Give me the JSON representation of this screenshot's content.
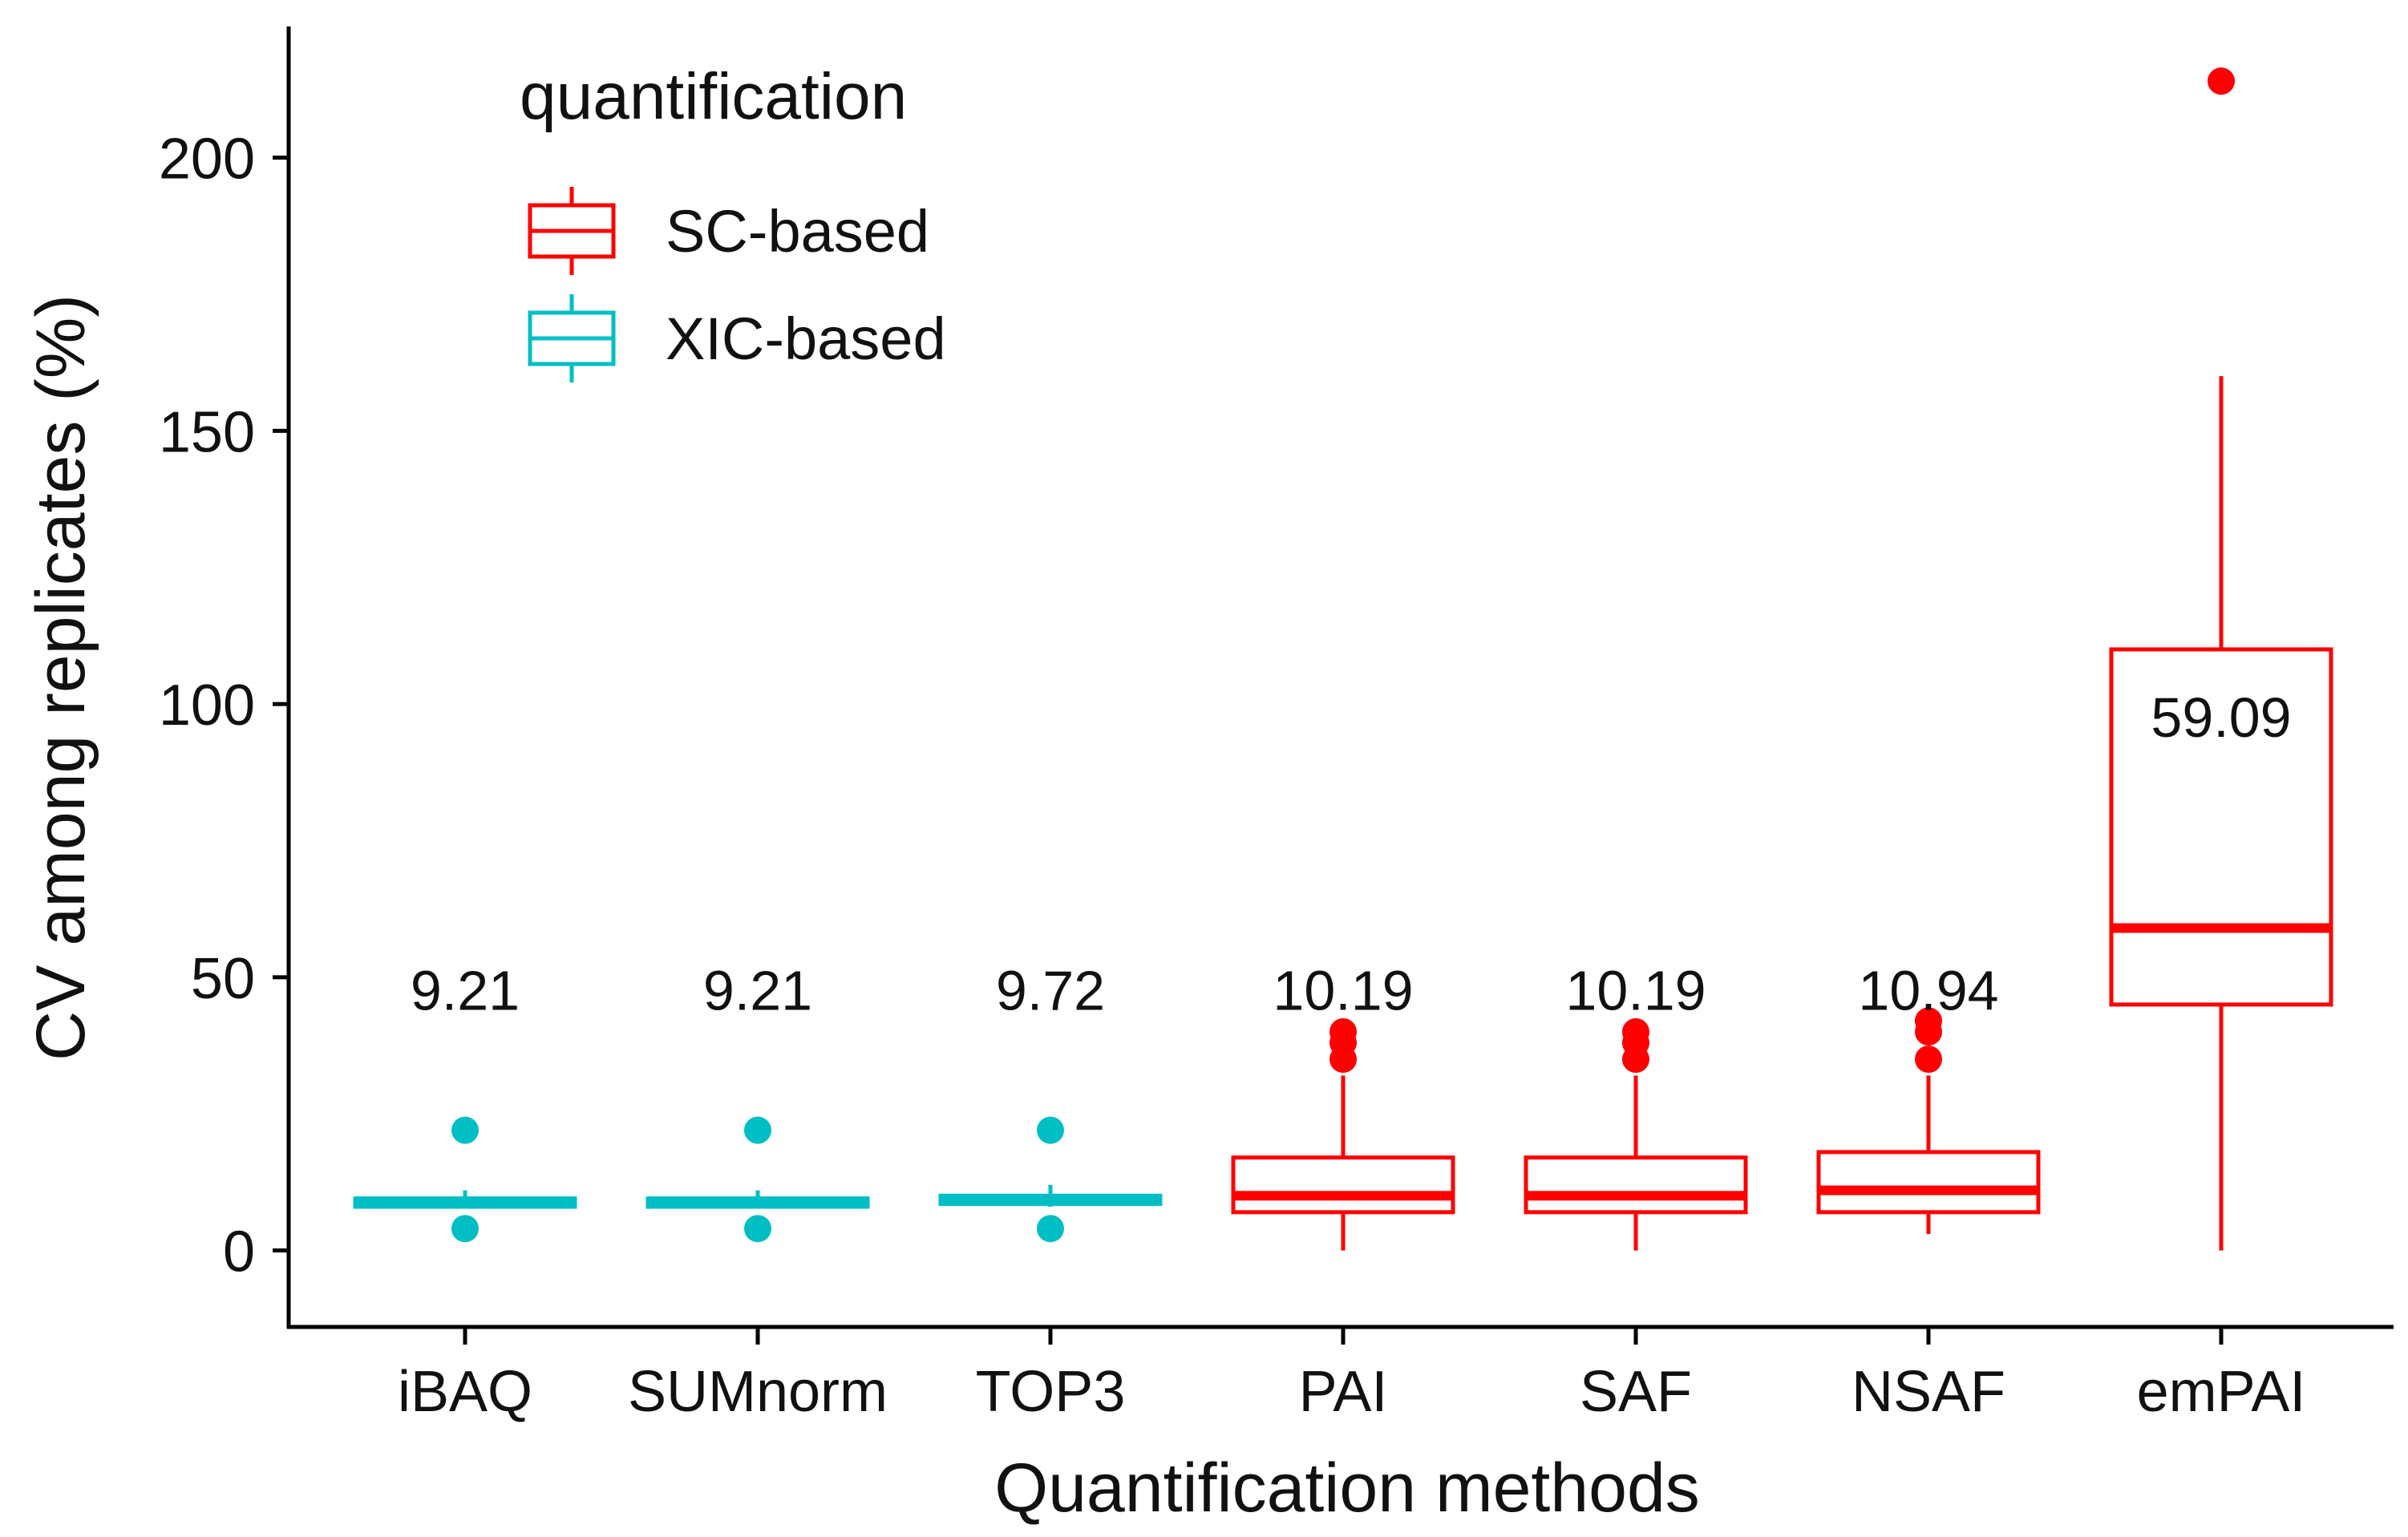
{
  "chart_data": {
    "type": "box",
    "title": "",
    "xlabel": "Quantification methods",
    "ylabel": "CV among replicates (%)",
    "ylim": [
      -14,
      224
    ],
    "yticks": [
      0,
      50,
      100,
      150,
      200
    ],
    "legend": {
      "title": "quantification",
      "placement": "top-left",
      "entries": [
        {
          "label": "SC-based",
          "color": "#ff0000"
        },
        {
          "label": "XIC-based",
          "color": "#00bfc4"
        }
      ]
    },
    "categories": [
      "iBAQ",
      "SUMnorm",
      "TOP3",
      "PAI",
      "SAF",
      "NSAF",
      "emPAI"
    ],
    "boxes": [
      {
        "category": "iBAQ",
        "group": "XIC-based",
        "whisker_low": 8,
        "q1": 8,
        "median": 9,
        "q3": 9.5,
        "whisker_high": 11,
        "outliers": [
          22,
          4
        ],
        "label": "9.21"
      },
      {
        "category": "SUMnorm",
        "group": "XIC-based",
        "whisker_low": 8,
        "q1": 8,
        "median": 9,
        "q3": 9.5,
        "whisker_high": 11,
        "outliers": [
          22,
          4
        ],
        "label": "9.21"
      },
      {
        "category": "TOP3",
        "group": "XIC-based",
        "whisker_low": 8,
        "q1": 8.5,
        "median": 9.5,
        "q3": 10,
        "whisker_high": 12,
        "outliers": [
          22,
          4
        ],
        "label": "9.72"
      },
      {
        "category": "PAI",
        "group": "SC-based",
        "whisker_low": 0,
        "q1": 7,
        "median": 10,
        "q3": 17,
        "whisker_high": 32,
        "outliers": [
          35,
          38,
          40
        ],
        "label": "10.19"
      },
      {
        "category": "SAF",
        "group": "SC-based",
        "whisker_low": 0,
        "q1": 7,
        "median": 10,
        "q3": 17,
        "whisker_high": 32,
        "outliers": [
          35,
          38,
          40
        ],
        "label": "10.19"
      },
      {
        "category": "NSAF",
        "group": "SC-based",
        "whisker_low": 3,
        "q1": 7,
        "median": 11,
        "q3": 18,
        "whisker_high": 32,
        "outliers": [
          35,
          40,
          42
        ],
        "label": "10.94"
      },
      {
        "category": "emPAI",
        "group": "SC-based",
        "whisker_low": 0,
        "q1": 45,
        "median": 59,
        "q3": 110,
        "whisker_high": 160,
        "outliers": [
          214
        ],
        "label": "59.09",
        "label_value": 94
      }
    ],
    "label_value_default": 44
  }
}
